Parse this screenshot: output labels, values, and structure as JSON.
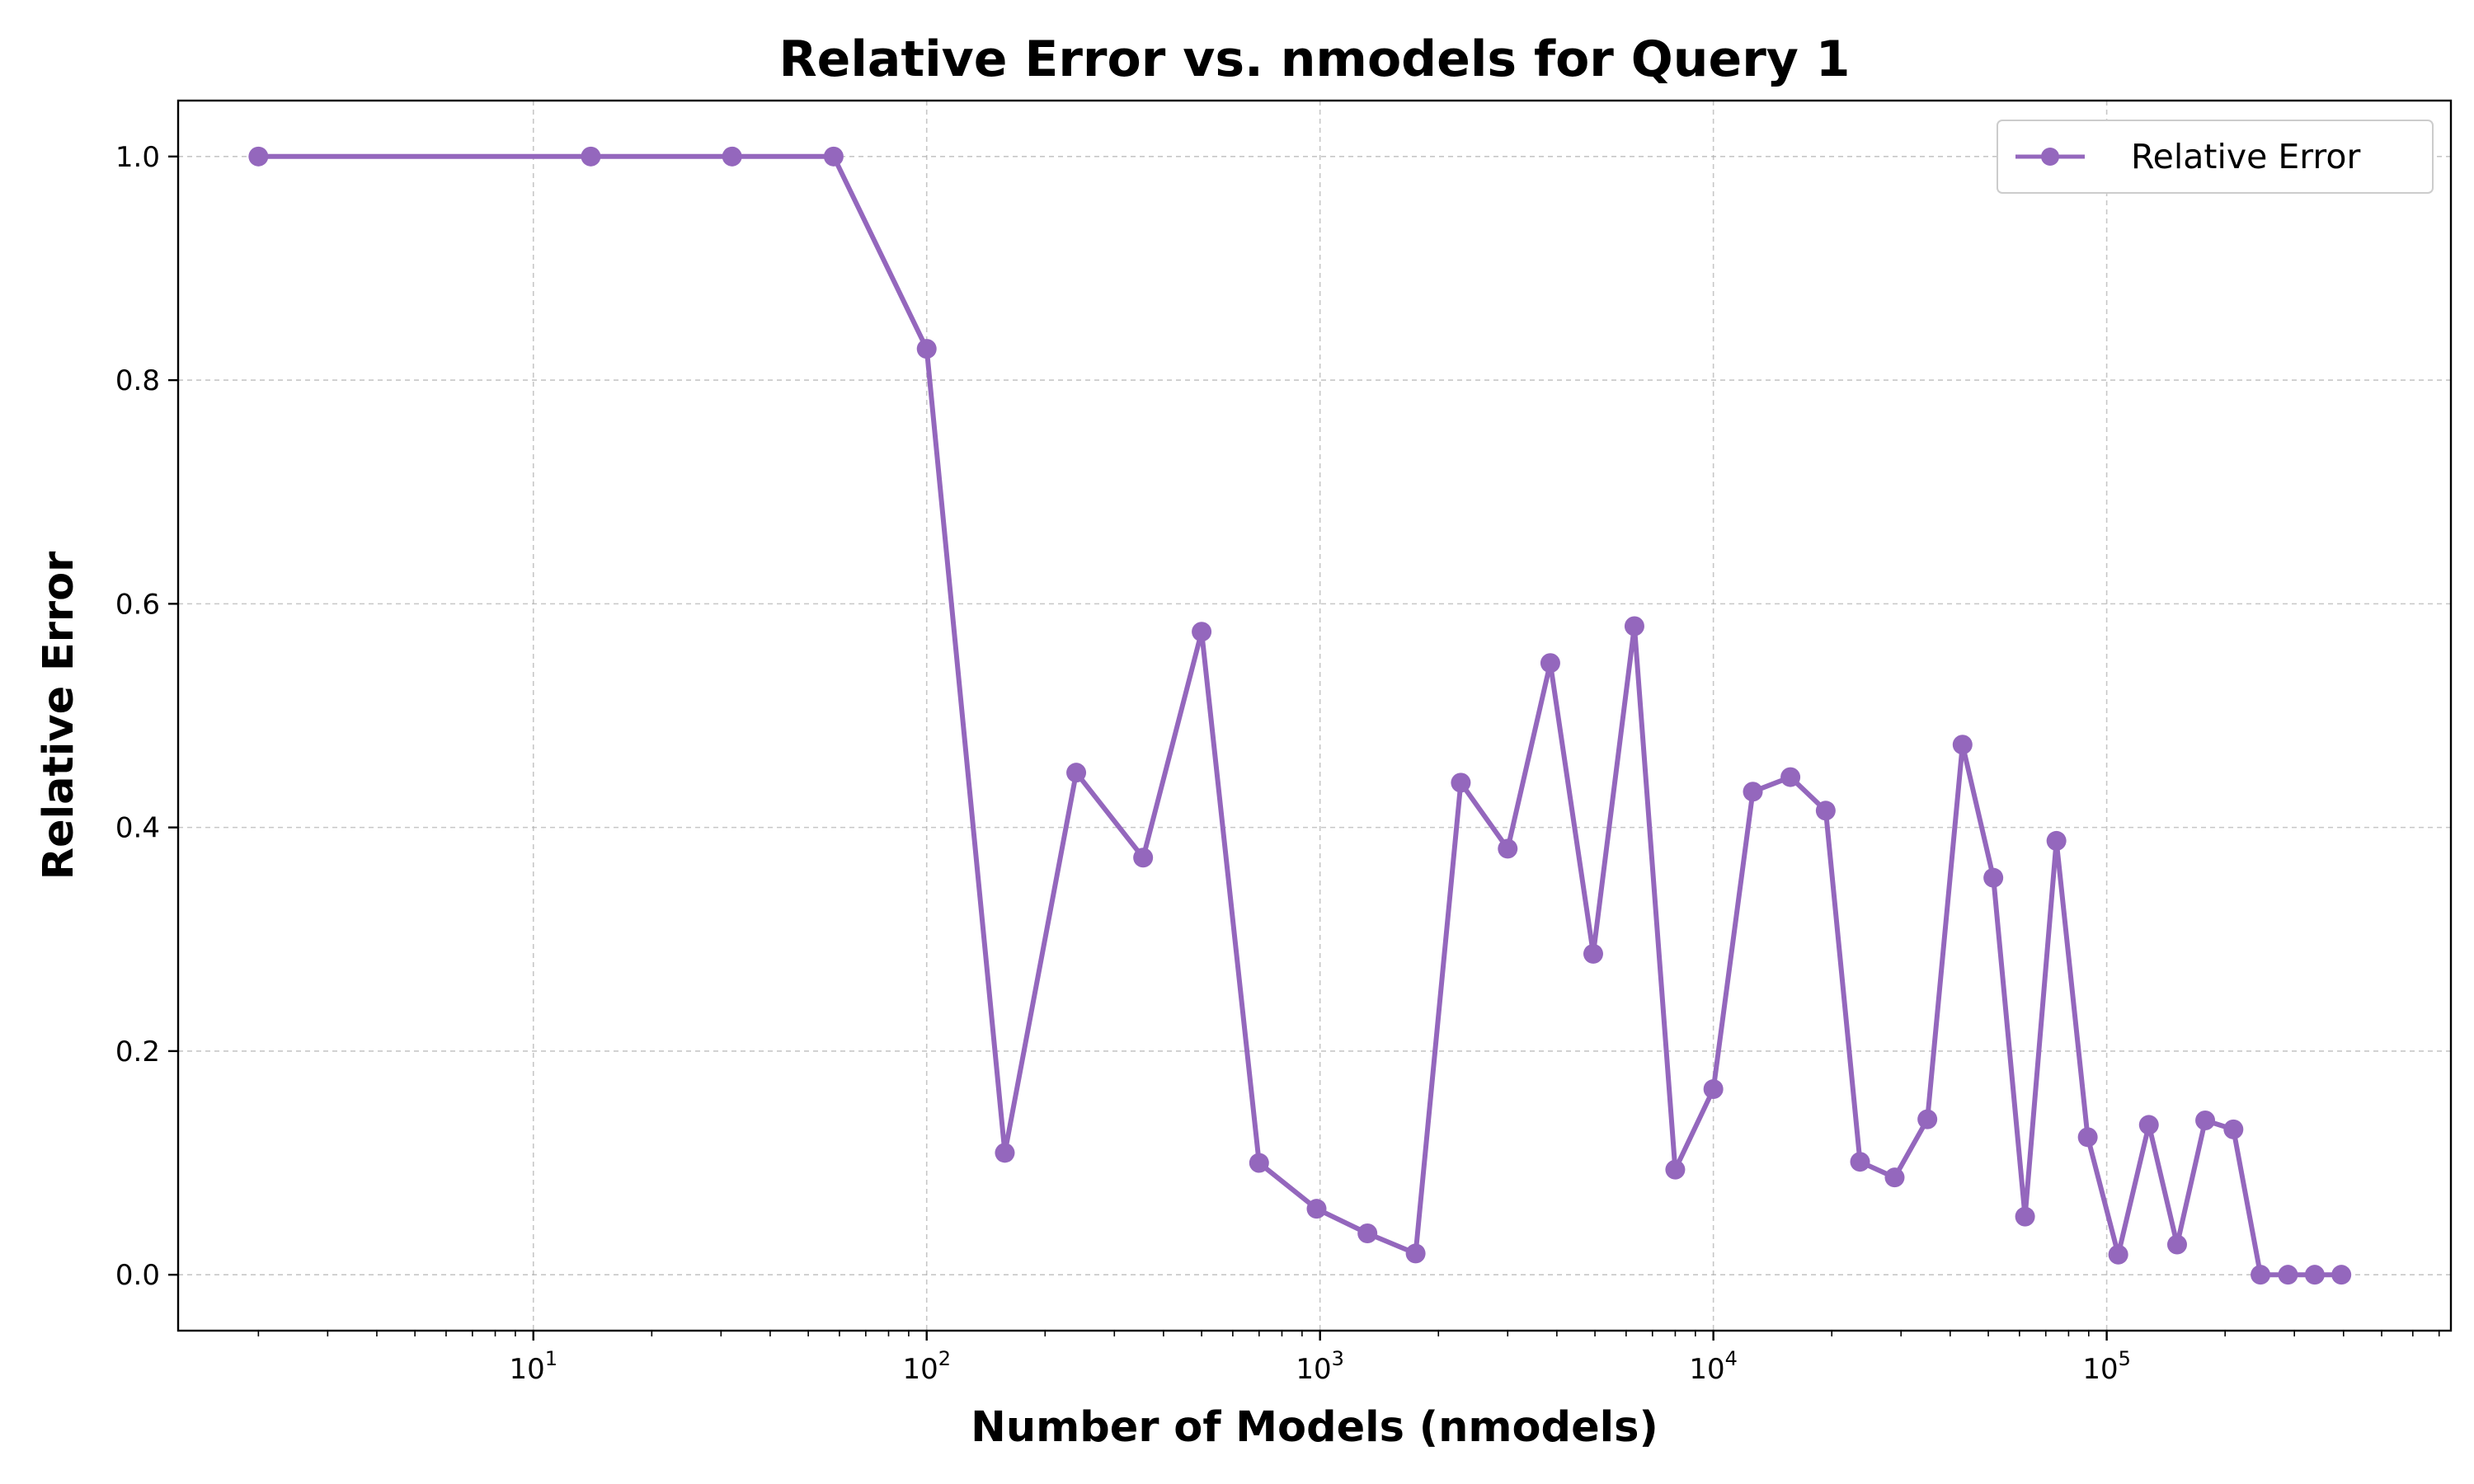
{
  "chart_data": {
    "type": "line",
    "title": "Relative Error vs. nmodels for Query 1",
    "xlabel": "Number of Models (nmodels)",
    "ylabel": "Relative Error",
    "xscale": "log",
    "xlim": [
      1.25,
      750000
    ],
    "ylim": [
      -0.05,
      1.05
    ],
    "grid": true,
    "legend_position": "top-right",
    "x_ticks": [
      {
        "base": "10",
        "exp": "1",
        "value": 10
      },
      {
        "base": "10",
        "exp": "2",
        "value": 100
      },
      {
        "base": "10",
        "exp": "3",
        "value": 1000
      },
      {
        "base": "10",
        "exp": "4",
        "value": 10000
      },
      {
        "base": "10",
        "exp": "5",
        "value": 100000
      }
    ],
    "y_ticks": [
      "0.0",
      "0.2",
      "0.4",
      "0.6",
      "0.8",
      "1.0"
    ],
    "series": [
      {
        "name": "Relative Error",
        "color": "#9467bd",
        "marker": "circle",
        "x": [
          2,
          14,
          32,
          58,
          100,
          158,
          240,
          355,
          500,
          700,
          980,
          1320,
          1750,
          2280,
          3000,
          3850,
          4950,
          6300,
          8000,
          10000,
          12600,
          15700,
          19300,
          23600,
          28900,
          35000,
          43000,
          51500,
          62000,
          74500,
          89500,
          107000,
          128000,
          151000,
          178000,
          210000,
          246000,
          289000,
          338000,
          395000
        ],
        "values": [
          1.0,
          1.0,
          1.0,
          1.0,
          0.828,
          0.109,
          0.449,
          0.373,
          0.575,
          0.1,
          0.059,
          0.037,
          0.019,
          0.44,
          0.381,
          0.547,
          0.287,
          0.58,
          0.094,
          0.166,
          0.432,
          0.445,
          0.415,
          0.101,
          0.087,
          0.139,
          0.474,
          0.355,
          0.052,
          0.388,
          0.123,
          0.018,
          0.134,
          0.027,
          0.138,
          0.13,
          0.0,
          0.0,
          0.0,
          0.0
        ]
      }
    ]
  }
}
